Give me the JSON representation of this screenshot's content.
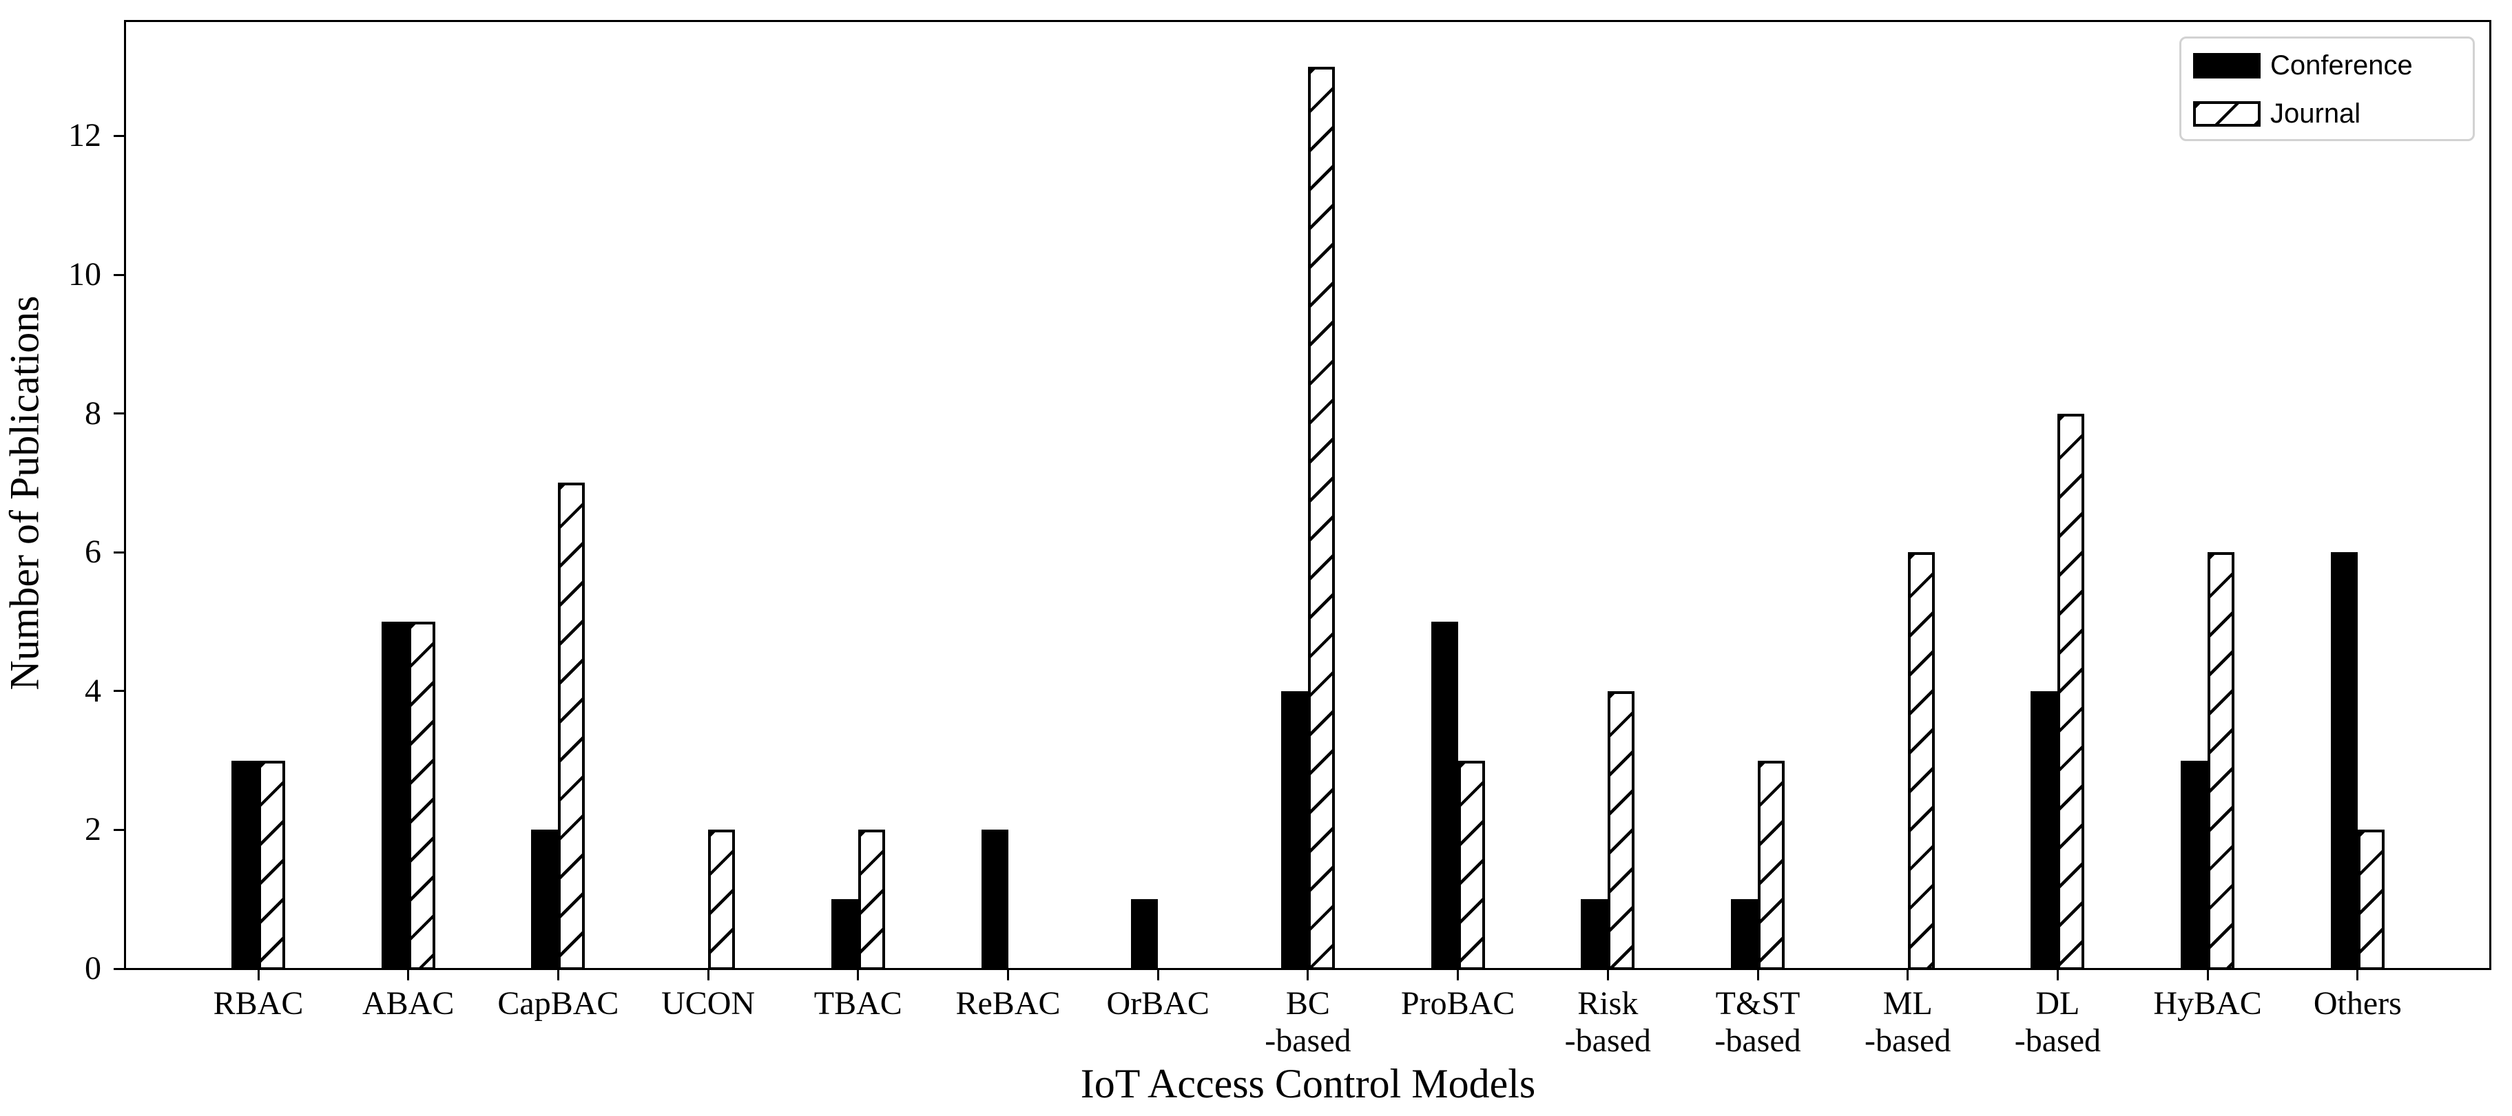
{
  "chart_data": {
    "type": "bar",
    "title": "",
    "xlabel": "IoT Access Control Models",
    "ylabel": "Number of Publications",
    "categories": [
      "RBAC",
      "ABAC",
      "CapBAC",
      "UCON",
      "TBAC",
      "ReBAC",
      "OrBAC",
      "BC\n-based",
      "ProBAC",
      "Risk\n-based",
      "T&ST\n-based",
      "ML\n-based",
      "DL\n-based",
      "HyBAC",
      "Others"
    ],
    "series": [
      {
        "name": "Conference",
        "style": "solid",
        "values": [
          3,
          5,
          2,
          0,
          1,
          2,
          1,
          4,
          5,
          1,
          1,
          0,
          4,
          3,
          6
        ]
      },
      {
        "name": "Journal",
        "style": "hatched",
        "values": [
          3,
          5,
          7,
          2,
          2,
          0,
          0,
          13,
          3,
          4,
          3,
          6,
          8,
          6,
          2
        ]
      }
    ],
    "y_ticks": [
      0,
      2,
      4,
      6,
      8,
      10,
      12
    ],
    "ylim": [
      0,
      13.66
    ],
    "grid": false,
    "legend_position": "top-right",
    "colors": {
      "bar_fill": "#000000",
      "hatch_line": "#000000",
      "bar_background": "#ffffff",
      "axis": "#000000",
      "text": "#000000",
      "legend_border": "#d2d2d2",
      "background": "#ffffff"
    }
  },
  "legend": {
    "items": [
      {
        "label": "Conference",
        "swatch": "solid-black-patch"
      },
      {
        "label": "Journal",
        "swatch": "diagonal-hatch-patch"
      }
    ]
  }
}
